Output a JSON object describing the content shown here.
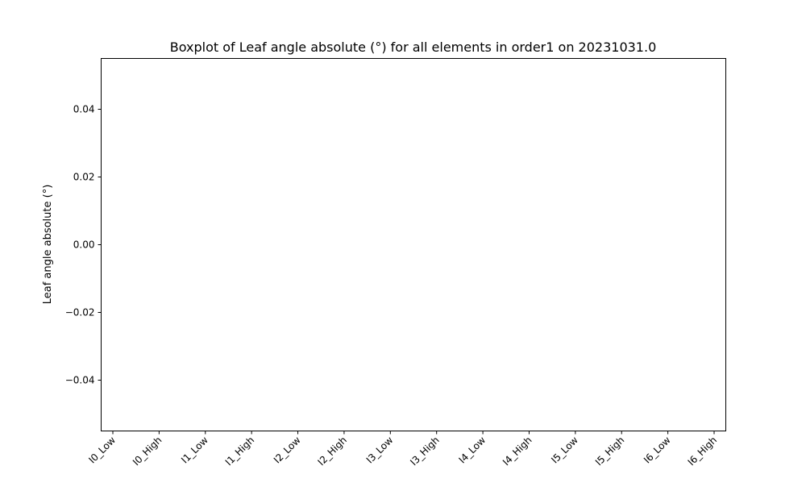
{
  "chart_data": {
    "type": "box",
    "title": "Boxplot of Leaf angle absolute (°) for all elements in order1 on 20231031.0",
    "xlabel": "",
    "ylabel": "Leaf angle absolute (°)",
    "categories": [
      "I0_Low",
      "I0_High",
      "I1_Low",
      "I1_High",
      "I2_Low",
      "I2_High",
      "I3_Low",
      "I3_High",
      "I4_Low",
      "I4_High",
      "I5_Low",
      "I5_High",
      "I6_Low",
      "I6_High"
    ],
    "series": [],
    "ylim": [
      -0.055,
      0.055
    ],
    "yticks": [
      -0.04,
      -0.02,
      0.0,
      0.02,
      0.04
    ],
    "ytick_labels": [
      "−0.04",
      "−0.02",
      "0.00",
      "0.02",
      "0.04"
    ],
    "grid": false,
    "legend": "none"
  }
}
